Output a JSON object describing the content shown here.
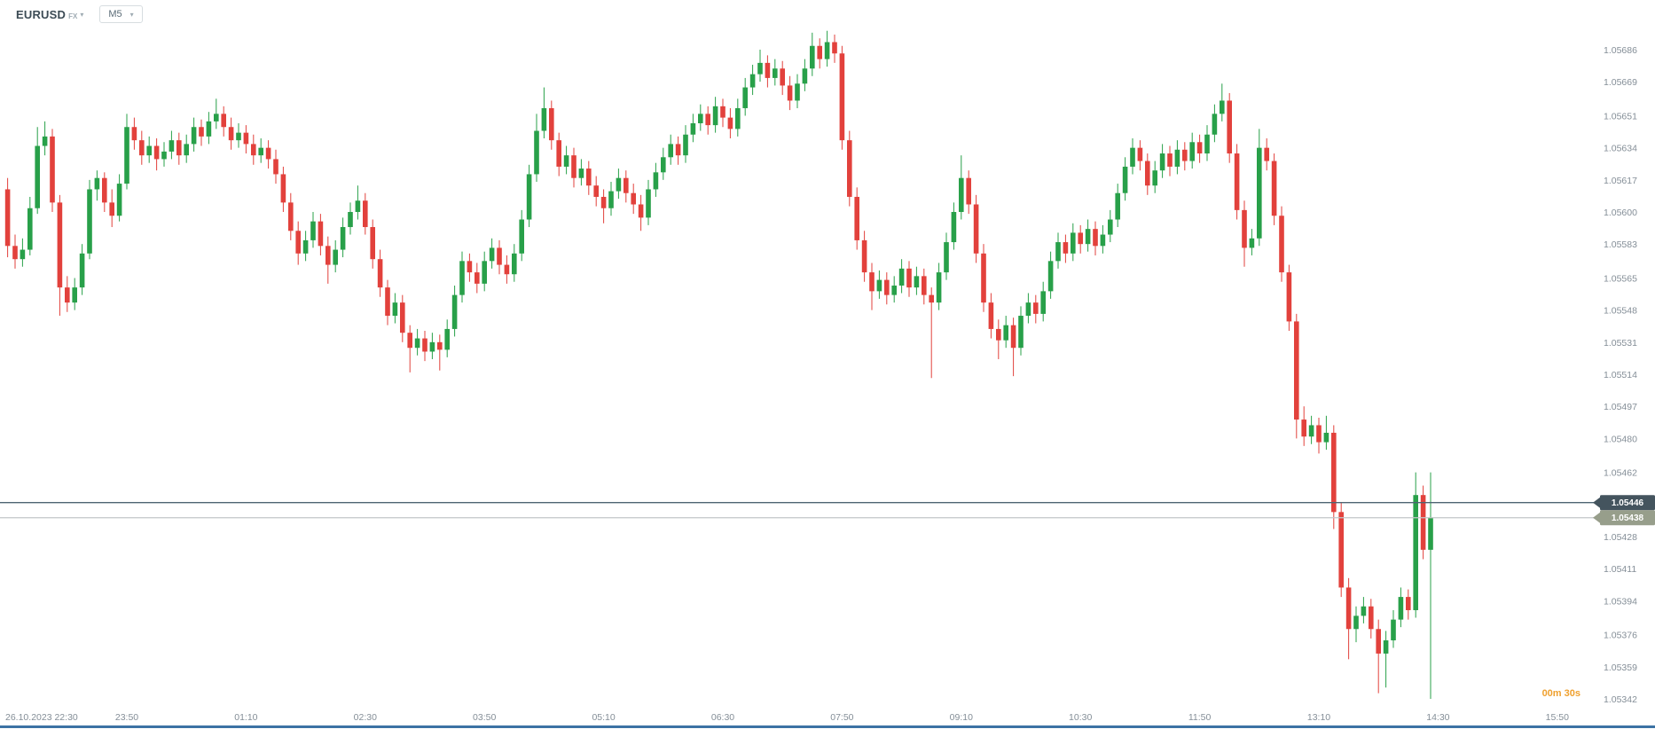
{
  "header": {
    "symbol": "EURUSD",
    "symbol_suffix": "FX",
    "timeframe": "M5"
  },
  "countdown": {
    "text": "00m 30s"
  },
  "price_lines": [
    {
      "label": "1.05446",
      "value": 1.05446,
      "line_color": "#4e6472",
      "badge_color": "#44545e",
      "line_width": 1.4
    },
    {
      "label": "1.05438",
      "value": 1.05438,
      "line_color": "#c2c6c9",
      "badge_color": "#979e8b",
      "line_width": 1.2
    }
  ],
  "axis": {
    "price_ticks": [
      "1.05686",
      "1.05669",
      "1.05651",
      "1.05634",
      "1.05617",
      "1.05600",
      "1.05583",
      "1.05565",
      "1.05548",
      "1.05531",
      "1.05514",
      "1.05497",
      "1.05480",
      "1.05462",
      "1.05428",
      "1.05411",
      "1.05394",
      "1.05376",
      "1.05359",
      "1.05342"
    ],
    "time_ticks": [
      {
        "label": "26.10.2023 22:30",
        "index": 0
      },
      {
        "label": "23:50",
        "index": 16
      },
      {
        "label": "01:10",
        "index": 32
      },
      {
        "label": "02:30",
        "index": 48
      },
      {
        "label": "03:50",
        "index": 64
      },
      {
        "label": "05:10",
        "index": 80
      },
      {
        "label": "06:30",
        "index": 96
      },
      {
        "label": "07:50",
        "index": 112
      },
      {
        "label": "09:10",
        "index": 128
      },
      {
        "label": "10:30",
        "index": 144
      },
      {
        "label": "11:50",
        "index": 160
      },
      {
        "label": "13:10",
        "index": 176
      },
      {
        "label": "14:30",
        "index": 192
      },
      {
        "label": "15:50",
        "index": 208
      }
    ]
  },
  "colors": {
    "up": "#28a049",
    "down": "#e2413c",
    "axis_text": "#848e97",
    "countdown": "#efa02e",
    "badge_text": "#ffffff",
    "bottom_bar": "#3c72a4"
  },
  "chart_data": {
    "type": "candlestick",
    "title": "EURUSD",
    "market": "FX",
    "timeframe": "M5",
    "start_time": "26.10.2023 22:30",
    "interval_minutes": 5,
    "price_range": [
      1.05342,
      1.05686
    ],
    "current_price": 1.05438,
    "order_line_price": 1.05446,
    "grid": false,
    "candles": [
      [
        1.05612,
        1.05618,
        1.05576,
        1.05582
      ],
      [
        1.05582,
        1.05588,
        1.0557,
        1.05575
      ],
      [
        1.05575,
        1.05586,
        1.05571,
        1.0558
      ],
      [
        1.0558,
        1.05608,
        1.05577,
        1.05602
      ],
      [
        1.05602,
        1.05645,
        1.05599,
        1.05635
      ],
      [
        1.05635,
        1.05648,
        1.0563,
        1.0564
      ],
      [
        1.0564,
        1.05644,
        1.056,
        1.05605
      ],
      [
        1.05605,
        1.05609,
        1.05545,
        1.0556
      ],
      [
        1.0556,
        1.05566,
        1.05547,
        1.05552
      ],
      [
        1.05552,
        1.05565,
        1.05548,
        1.0556
      ],
      [
        1.0556,
        1.05583,
        1.05556,
        1.05578
      ],
      [
        1.05578,
        1.05617,
        1.05575,
        1.05612
      ],
      [
        1.05612,
        1.05622,
        1.05606,
        1.05618
      ],
      [
        1.05618,
        1.05621,
        1.056,
        1.05605
      ],
      [
        1.05605,
        1.05612,
        1.05592,
        1.05598
      ],
      [
        1.05598,
        1.0562,
        1.05595,
        1.05615
      ],
      [
        1.05615,
        1.05652,
        1.05612,
        1.05645
      ],
      [
        1.05645,
        1.0565,
        1.05633,
        1.05638
      ],
      [
        1.05638,
        1.05643,
        1.05625,
        1.0563
      ],
      [
        1.0563,
        1.0564,
        1.05626,
        1.05635
      ],
      [
        1.05635,
        1.05639,
        1.05622,
        1.05628
      ],
      [
        1.05628,
        1.05637,
        1.05624,
        1.05632
      ],
      [
        1.05632,
        1.05643,
        1.05628,
        1.05638
      ],
      [
        1.05638,
        1.05642,
        1.05625,
        1.0563
      ],
      [
        1.0563,
        1.05641,
        1.05626,
        1.05636
      ],
      [
        1.05636,
        1.0565,
        1.05632,
        1.05645
      ],
      [
        1.05645,
        1.05649,
        1.05635,
        1.0564
      ],
      [
        1.0564,
        1.05653,
        1.05636,
        1.05648
      ],
      [
        1.05648,
        1.0566,
        1.05644,
        1.05652
      ],
      [
        1.05652,
        1.05656,
        1.0564,
        1.05645
      ],
      [
        1.05645,
        1.0565,
        1.05633,
        1.05638
      ],
      [
        1.05638,
        1.05647,
        1.05634,
        1.05642
      ],
      [
        1.05642,
        1.05646,
        1.05631,
        1.05636
      ],
      [
        1.05636,
        1.05641,
        1.05625,
        1.0563
      ],
      [
        1.0563,
        1.05639,
        1.05626,
        1.05634
      ],
      [
        1.05634,
        1.05638,
        1.05623,
        1.05628
      ],
      [
        1.05628,
        1.05633,
        1.05615,
        1.0562
      ],
      [
        1.0562,
        1.05624,
        1.056,
        1.05605
      ],
      [
        1.05605,
        1.0561,
        1.05585,
        1.0559
      ],
      [
        1.0559,
        1.05595,
        1.05572,
        1.05578
      ],
      [
        1.05578,
        1.0559,
        1.05574,
        1.05585
      ],
      [
        1.05585,
        1.056,
        1.05581,
        1.05595
      ],
      [
        1.05595,
        1.05599,
        1.05577,
        1.05582
      ],
      [
        1.05582,
        1.05587,
        1.05562,
        1.05572
      ],
      [
        1.05572,
        1.05585,
        1.05568,
        1.0558
      ],
      [
        1.0558,
        1.05597,
        1.05576,
        1.05592
      ],
      [
        1.05592,
        1.05605,
        1.05588,
        1.056
      ],
      [
        1.056,
        1.05614,
        1.05596,
        1.05606
      ],
      [
        1.05606,
        1.0561,
        1.05588,
        1.05592
      ],
      [
        1.05592,
        1.05596,
        1.0557,
        1.05575
      ],
      [
        1.05575,
        1.0558,
        1.05555,
        1.0556
      ],
      [
        1.0556,
        1.05564,
        1.0554,
        1.05545
      ],
      [
        1.05545,
        1.05557,
        1.05541,
        1.05552
      ],
      [
        1.05552,
        1.05556,
        1.05531,
        1.05536
      ],
      [
        1.05536,
        1.0554,
        1.05515,
        1.05528
      ],
      [
        1.05528,
        1.05538,
        1.05524,
        1.05533
      ],
      [
        1.05533,
        1.05537,
        1.05521,
        1.05526
      ],
      [
        1.05526,
        1.05536,
        1.05522,
        1.05531
      ],
      [
        1.05531,
        1.05535,
        1.05516,
        1.05527
      ],
      [
        1.05527,
        1.05543,
        1.05523,
        1.05538
      ],
      [
        1.05538,
        1.05561,
        1.05534,
        1.05556
      ],
      [
        1.05556,
        1.05579,
        1.05552,
        1.05574
      ],
      [
        1.05574,
        1.05578,
        1.05563,
        1.05568
      ],
      [
        1.05568,
        1.05573,
        1.05557,
        1.05562
      ],
      [
        1.05562,
        1.05579,
        1.05558,
        1.05574
      ],
      [
        1.05574,
        1.05586,
        1.0557,
        1.05581
      ],
      [
        1.05581,
        1.05585,
        1.05567,
        1.05572
      ],
      [
        1.05572,
        1.05577,
        1.05562,
        1.05567
      ],
      [
        1.05567,
        1.05583,
        1.05563,
        1.05578
      ],
      [
        1.05578,
        1.05601,
        1.05574,
        1.05596
      ],
      [
        1.05596,
        1.05625,
        1.05592,
        1.0562
      ],
      [
        1.0562,
        1.05652,
        1.05616,
        1.05643
      ],
      [
        1.05643,
        1.05666,
        1.05639,
        1.05655
      ],
      [
        1.05655,
        1.05659,
        1.05633,
        1.05638
      ],
      [
        1.05638,
        1.05642,
        1.05619,
        1.05624
      ],
      [
        1.05624,
        1.05635,
        1.0562,
        1.0563
      ],
      [
        1.0563,
        1.05634,
        1.05613,
        1.05618
      ],
      [
        1.05618,
        1.05628,
        1.05614,
        1.05623
      ],
      [
        1.05623,
        1.05627,
        1.05609,
        1.05614
      ],
      [
        1.05614,
        1.05619,
        1.05603,
        1.05608
      ],
      [
        1.05608,
        1.05612,
        1.05594,
        1.05602
      ],
      [
        1.05602,
        1.05616,
        1.05598,
        1.05611
      ],
      [
        1.05611,
        1.05623,
        1.05607,
        1.05618
      ],
      [
        1.05618,
        1.05622,
        1.05605,
        1.0561
      ],
      [
        1.0561,
        1.05615,
        1.05599,
        1.05604
      ],
      [
        1.05604,
        1.05609,
        1.0559,
        1.05597
      ],
      [
        1.05597,
        1.05617,
        1.05593,
        1.05612
      ],
      [
        1.05612,
        1.05626,
        1.05608,
        1.05621
      ],
      [
        1.05621,
        1.05634,
        1.05617,
        1.05629
      ],
      [
        1.05629,
        1.05641,
        1.05625,
        1.05636
      ],
      [
        1.05636,
        1.0564,
        1.05625,
        1.0563
      ],
      [
        1.0563,
        1.05646,
        1.05626,
        1.05641
      ],
      [
        1.05641,
        1.05652,
        1.05637,
        1.05647
      ],
      [
        1.05647,
        1.05657,
        1.05643,
        1.05652
      ],
      [
        1.05652,
        1.05656,
        1.05641,
        1.05646
      ],
      [
        1.05646,
        1.05661,
        1.05642,
        1.05656
      ],
      [
        1.05656,
        1.0566,
        1.05645,
        1.0565
      ],
      [
        1.0565,
        1.05655,
        1.05639,
        1.05644
      ],
      [
        1.05644,
        1.0566,
        1.0564,
        1.05655
      ],
      [
        1.05655,
        1.05671,
        1.05651,
        1.05666
      ],
      [
        1.05666,
        1.05678,
        1.05662,
        1.05673
      ],
      [
        1.05673,
        1.05686,
        1.05669,
        1.05679
      ],
      [
        1.05679,
        1.05683,
        1.05666,
        1.05671
      ],
      [
        1.05671,
        1.05681,
        1.05667,
        1.05676
      ],
      [
        1.05676,
        1.0568,
        1.05662,
        1.05667
      ],
      [
        1.05667,
        1.05672,
        1.05654,
        1.05659
      ],
      [
        1.05659,
        1.05673,
        1.05655,
        1.05668
      ],
      [
        1.05668,
        1.05681,
        1.05664,
        1.05676
      ],
      [
        1.05676,
        1.05695,
        1.05672,
        1.05688
      ],
      [
        1.05688,
        1.05692,
        1.05676,
        1.05681
      ],
      [
        1.05681,
        1.05696,
        1.05677,
        1.0569
      ],
      [
        1.0569,
        1.05694,
        1.05679,
        1.05684
      ],
      [
        1.05684,
        1.05688,
        1.05633,
        1.05638
      ],
      [
        1.05638,
        1.05643,
        1.05603,
        1.05608
      ],
      [
        1.05608,
        1.05613,
        1.0558,
        1.05585
      ],
      [
        1.05585,
        1.0559,
        1.05563,
        1.05568
      ],
      [
        1.05568,
        1.05573,
        1.05548,
        1.05558
      ],
      [
        1.05558,
        1.05569,
        1.05554,
        1.05564
      ],
      [
        1.05564,
        1.05568,
        1.05551,
        1.05556
      ],
      [
        1.05556,
        1.05566,
        1.05552,
        1.05561
      ],
      [
        1.05561,
        1.05575,
        1.05557,
        1.0557
      ],
      [
        1.0557,
        1.05574,
        1.05555,
        1.0556
      ],
      [
        1.0556,
        1.05571,
        1.05556,
        1.05566
      ],
      [
        1.05566,
        1.0557,
        1.05551,
        1.05556
      ],
      [
        1.05556,
        1.0556,
        1.05512,
        1.05552
      ],
      [
        1.05552,
        1.05573,
        1.05548,
        1.05568
      ],
      [
        1.05568,
        1.05589,
        1.05564,
        1.05584
      ],
      [
        1.05584,
        1.05605,
        1.0558,
        1.056
      ],
      [
        1.056,
        1.0563,
        1.05596,
        1.05618
      ],
      [
        1.05618,
        1.05622,
        1.05599,
        1.05604
      ],
      [
        1.05604,
        1.05609,
        1.05573,
        1.05578
      ],
      [
        1.05578,
        1.05583,
        1.05547,
        1.05552
      ],
      [
        1.05552,
        1.05557,
        1.05533,
        1.05538
      ],
      [
        1.05538,
        1.05543,
        1.05522,
        1.05532
      ],
      [
        1.05532,
        1.05545,
        1.05528,
        1.0554
      ],
      [
        1.0554,
        1.05544,
        1.05513,
        1.05528
      ],
      [
        1.05528,
        1.0555,
        1.05524,
        1.05545
      ],
      [
        1.05545,
        1.05557,
        1.05541,
        1.05552
      ],
      [
        1.05552,
        1.05556,
        1.05541,
        1.05546
      ],
      [
        1.05546,
        1.05563,
        1.05542,
        1.05558
      ],
      [
        1.05558,
        1.05579,
        1.05554,
        1.05574
      ],
      [
        1.05574,
        1.05589,
        1.0557,
        1.05584
      ],
      [
        1.05584,
        1.05588,
        1.05573,
        1.05578
      ],
      [
        1.05578,
        1.05594,
        1.05574,
        1.05589
      ],
      [
        1.05589,
        1.05593,
        1.05578,
        1.05583
      ],
      [
        1.05583,
        1.05596,
        1.05579,
        1.05591
      ],
      [
        1.05591,
        1.05595,
        1.05577,
        1.05582
      ],
      [
        1.05582,
        1.05593,
        1.05578,
        1.05588
      ],
      [
        1.05588,
        1.05601,
        1.05584,
        1.05596
      ],
      [
        1.05596,
        1.05615,
        1.05592,
        1.0561
      ],
      [
        1.0561,
        1.05629,
        1.05606,
        1.05624
      ],
      [
        1.05624,
        1.05639,
        1.0562,
        1.05634
      ],
      [
        1.05634,
        1.05638,
        1.05622,
        1.05627
      ],
      [
        1.05627,
        1.05631,
        1.05609,
        1.05614
      ],
      [
        1.05614,
        1.05627,
        1.0561,
        1.05622
      ],
      [
        1.05622,
        1.05636,
        1.05618,
        1.05631
      ],
      [
        1.05631,
        1.05635,
        1.05619,
        1.05624
      ],
      [
        1.05624,
        1.05638,
        1.0562,
        1.05633
      ],
      [
        1.05633,
        1.05637,
        1.05622,
        1.05627
      ],
      [
        1.05627,
        1.05642,
        1.05623,
        1.05637
      ],
      [
        1.05637,
        1.05641,
        1.05626,
        1.05631
      ],
      [
        1.05631,
        1.05646,
        1.05627,
        1.05641
      ],
      [
        1.05641,
        1.05657,
        1.05637,
        1.05652
      ],
      [
        1.05652,
        1.05668,
        1.05648,
        1.05659
      ],
      [
        1.05659,
        1.05663,
        1.05626,
        1.05631
      ],
      [
        1.05631,
        1.05636,
        1.05596,
        1.05601
      ],
      [
        1.05601,
        1.05606,
        1.05571,
        1.05581
      ],
      [
        1.05581,
        1.05591,
        1.05577,
        1.05586
      ],
      [
        1.05586,
        1.05644,
        1.05582,
        1.05634
      ],
      [
        1.05634,
        1.05639,
        1.05622,
        1.05627
      ],
      [
        1.05627,
        1.05631,
        1.05593,
        1.05598
      ],
      [
        1.05598,
        1.05603,
        1.05563,
        1.05568
      ],
      [
        1.05568,
        1.05572,
        1.05537,
        1.05542
      ],
      [
        1.05542,
        1.05546,
        1.0548,
        1.0549
      ],
      [
        1.0549,
        1.05497,
        1.05476,
        1.05481
      ],
      [
        1.05481,
        1.05492,
        1.05477,
        1.05487
      ],
      [
        1.05487,
        1.05491,
        1.05472,
        1.05478
      ],
      [
        1.05478,
        1.05492,
        1.05474,
        1.05483
      ],
      [
        1.05483,
        1.05487,
        1.05432,
        1.05441
      ],
      [
        1.05441,
        1.05446,
        1.05396,
        1.05401
      ],
      [
        1.05401,
        1.05406,
        1.05363,
        1.05379
      ],
      [
        1.05379,
        1.05391,
        1.05372,
        1.05386
      ],
      [
        1.05386,
        1.05396,
        1.05382,
        1.05391
      ],
      [
        1.05391,
        1.05395,
        1.05374,
        1.05379
      ],
      [
        1.05379,
        1.05384,
        1.05345,
        1.05366
      ],
      [
        1.05366,
        1.05378,
        1.05348,
        1.05373
      ],
      [
        1.05373,
        1.05389,
        1.05369,
        1.05384
      ],
      [
        1.05384,
        1.05401,
        1.0538,
        1.05396
      ],
      [
        1.05396,
        1.054,
        1.05384,
        1.05389
      ],
      [
        1.05389,
        1.05462,
        1.05385,
        1.0545
      ],
      [
        1.0545,
        1.05455,
        1.05416,
        1.05421
      ],
      [
        1.05421,
        1.05462,
        1.05342,
        1.05438
      ]
    ]
  }
}
